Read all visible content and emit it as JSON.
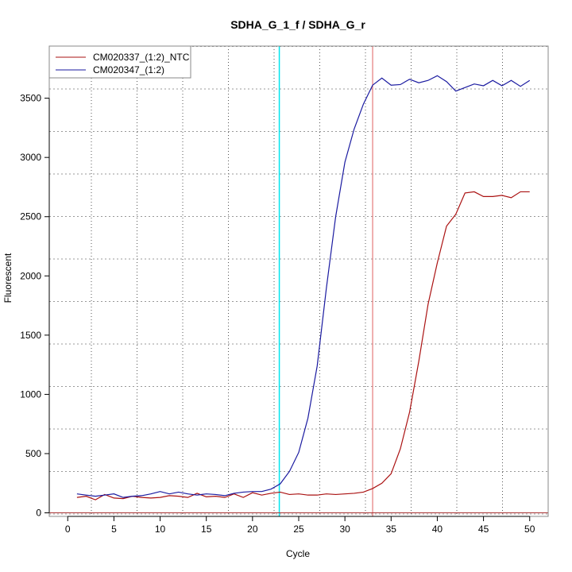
{
  "chart_data": {
    "type": "line",
    "title": "SDHA_G_1_f / SDHA_G_r",
    "xlabel": "Cycle",
    "ylabel": "Fluorescent",
    "xlim": [
      -2,
      52
    ],
    "ylim": [
      -30,
      3940
    ],
    "xticks": [
      0,
      5,
      10,
      15,
      20,
      25,
      30,
      35,
      40,
      45,
      50
    ],
    "yticks": [
      0,
      500,
      1000,
      1500,
      2000,
      2500,
      3000,
      3500
    ],
    "grid": true,
    "legend_position": "top-left",
    "x": [
      1,
      2,
      3,
      4,
      5,
      6,
      7,
      8,
      9,
      10,
      11,
      12,
      13,
      14,
      15,
      16,
      17,
      18,
      19,
      20,
      21,
      22,
      23,
      24,
      25,
      26,
      27,
      28,
      29,
      30,
      31,
      32,
      33,
      34,
      35,
      36,
      37,
      38,
      39,
      40,
      41,
      42,
      43,
      44,
      45,
      46,
      47,
      48,
      49,
      50
    ],
    "series": [
      {
        "name": "CM020337_(1:2)_NTC",
        "color": "#aa1111",
        "values": [
          130,
          140,
          110,
          155,
          125,
          120,
          140,
          130,
          125,
          130,
          145,
          140,
          130,
          165,
          135,
          140,
          130,
          160,
          130,
          170,
          150,
          165,
          175,
          155,
          160,
          150,
          150,
          160,
          155,
          160,
          165,
          175,
          205,
          250,
          330,
          540,
          850,
          1280,
          1760,
          2110,
          2420,
          2520,
          2700,
          2710,
          2670,
          2670,
          2680,
          2660,
          2710,
          2710
        ]
      },
      {
        "name": "CM020347_(1:2)",
        "color": "#1a1aa0",
        "values": [
          160,
          150,
          140,
          150,
          160,
          130,
          140,
          145,
          160,
          180,
          160,
          175,
          160,
          150,
          160,
          155,
          145,
          165,
          175,
          180,
          180,
          200,
          245,
          350,
          510,
          800,
          1240,
          1900,
          2500,
          2960,
          3240,
          3450,
          3610,
          3670,
          3610,
          3615,
          3660,
          3630,
          3650,
          3690,
          3640,
          3560,
          3590,
          3620,
          3605,
          3650,
          3605,
          3650,
          3600,
          3650
        ]
      }
    ],
    "threshold_lines": [
      {
        "axis": "x",
        "value": 22.9,
        "color": "#00e5ee"
      },
      {
        "axis": "x",
        "value": 33.0,
        "color": "#e06060"
      },
      {
        "axis": "y",
        "value": 0,
        "color": "#aa3333"
      }
    ]
  }
}
